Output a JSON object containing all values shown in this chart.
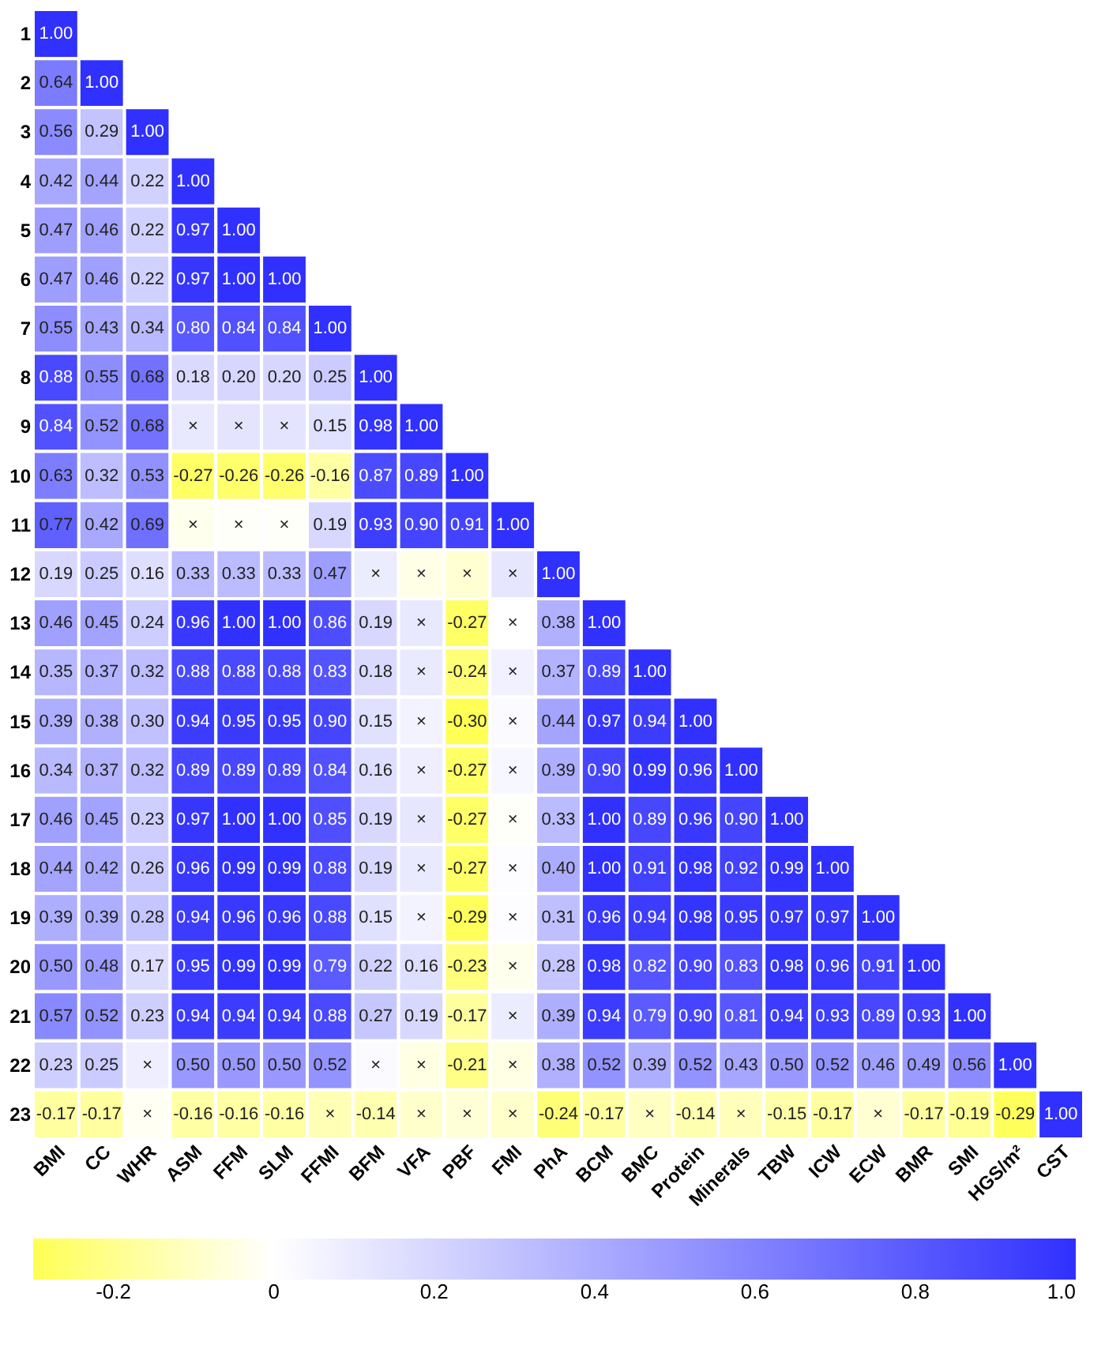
{
  "chart_data": {
    "type": "heatmap",
    "categories": [
      "BMI",
      "CC",
      "WHR",
      "ASM",
      "FFM",
      "SLM",
      "FFMI",
      "BFM",
      "VFA",
      "PBF",
      "FMI",
      "PhA",
      "BCM",
      "BMC",
      "Protein",
      "Minerals",
      "TBW",
      "ICW",
      "ECW",
      "BMR",
      "SMI",
      "HGS/m²",
      "CST"
    ],
    "y_categories": [
      "1",
      "2",
      "3",
      "4",
      "5",
      "6",
      "7",
      "8",
      "9",
      "10",
      "11",
      "12",
      "13",
      "14",
      "15",
      "16",
      "17",
      "18",
      "19",
      "20",
      "21",
      "22",
      "23"
    ],
    "cells": [
      [
        1.0,
        null,
        null,
        null,
        null,
        null,
        null,
        null,
        null,
        null,
        null,
        null,
        null,
        null,
        null,
        null,
        null,
        null,
        null,
        null,
        null,
        null,
        null
      ],
      [
        0.64,
        1.0,
        null,
        null,
        null,
        null,
        null,
        null,
        null,
        null,
        null,
        null,
        null,
        null,
        null,
        null,
        null,
        null,
        null,
        null,
        null,
        null,
        null
      ],
      [
        0.56,
        0.29,
        1.0,
        null,
        null,
        null,
        null,
        null,
        null,
        null,
        null,
        null,
        null,
        null,
        null,
        null,
        null,
        null,
        null,
        null,
        null,
        null,
        null
      ],
      [
        0.42,
        0.44,
        0.22,
        1.0,
        null,
        null,
        null,
        null,
        null,
        null,
        null,
        null,
        null,
        null,
        null,
        null,
        null,
        null,
        null,
        null,
        null,
        null,
        null
      ],
      [
        0.47,
        0.46,
        0.22,
        0.97,
        1.0,
        null,
        null,
        null,
        null,
        null,
        null,
        null,
        null,
        null,
        null,
        null,
        null,
        null,
        null,
        null,
        null,
        null,
        null
      ],
      [
        0.47,
        0.46,
        0.22,
        0.97,
        1.0,
        1.0,
        null,
        null,
        null,
        null,
        null,
        null,
        null,
        null,
        null,
        null,
        null,
        null,
        null,
        null,
        null,
        null,
        null
      ],
      [
        0.55,
        0.43,
        0.34,
        0.8,
        0.84,
        0.84,
        1.0,
        null,
        null,
        null,
        null,
        null,
        null,
        null,
        null,
        null,
        null,
        null,
        null,
        null,
        null,
        null,
        null
      ],
      [
        0.88,
        0.55,
        0.68,
        0.18,
        0.2,
        0.2,
        0.25,
        1.0,
        null,
        null,
        null,
        null,
        null,
        null,
        null,
        null,
        null,
        null,
        null,
        null,
        null,
        null,
        null
      ],
      [
        0.84,
        0.52,
        0.68,
        0.11,
        0.13,
        0.13,
        0.15,
        0.98,
        1.0,
        null,
        null,
        null,
        null,
        null,
        null,
        null,
        null,
        null,
        null,
        null,
        null,
        null,
        null
      ],
      [
        0.63,
        0.32,
        0.53,
        -0.27,
        -0.26,
        -0.26,
        -0.16,
        0.87,
        0.89,
        1.0,
        null,
        null,
        null,
        null,
        null,
        null,
        null,
        null,
        null,
        null,
        null,
        null,
        null
      ],
      [
        0.77,
        0.42,
        0.69,
        -0.03,
        -0.01,
        -0.01,
        0.19,
        0.93,
        0.9,
        0.91,
        1.0,
        null,
        null,
        null,
        null,
        null,
        null,
        null,
        null,
        null,
        null,
        null,
        null
      ],
      [
        0.19,
        0.25,
        0.16,
        0.33,
        0.33,
        0.33,
        0.47,
        0.09,
        -0.04,
        -0.08,
        0.12,
        1.0,
        null,
        null,
        null,
        null,
        null,
        null,
        null,
        null,
        null,
        null,
        null
      ],
      [
        0.46,
        0.45,
        0.24,
        0.96,
        1.0,
        1.0,
        0.86,
        0.19,
        0.11,
        -0.27,
        0.0,
        0.38,
        1.0,
        null,
        null,
        null,
        null,
        null,
        null,
        null,
        null,
        null,
        null
      ],
      [
        0.35,
        0.37,
        0.32,
        0.88,
        0.88,
        0.88,
        0.83,
        0.18,
        0.1,
        -0.24,
        0.07,
        0.37,
        0.89,
        1.0,
        null,
        null,
        null,
        null,
        null,
        null,
        null,
        null,
        null
      ],
      [
        0.39,
        0.38,
        0.3,
        0.94,
        0.95,
        0.95,
        0.9,
        0.15,
        0.06,
        -0.3,
        0.02,
        0.44,
        0.97,
        0.94,
        1.0,
        null,
        null,
        null,
        null,
        null,
        null,
        null,
        null
      ],
      [
        0.34,
        0.37,
        0.32,
        0.89,
        0.89,
        0.89,
        0.84,
        0.16,
        0.08,
        -0.27,
        0.04,
        0.39,
        0.9,
        0.99,
        0.96,
        1.0,
        null,
        null,
        null,
        null,
        null,
        null,
        null
      ],
      [
        0.46,
        0.45,
        0.23,
        0.97,
        1.0,
        1.0,
        0.85,
        0.19,
        0.12,
        -0.27,
        -0.01,
        0.33,
        1.0,
        0.89,
        0.96,
        0.9,
        1.0,
        null,
        null,
        null,
        null,
        null,
        null
      ],
      [
        0.44,
        0.42,
        0.26,
        0.96,
        0.99,
        0.99,
        0.88,
        0.19,
        0.1,
        -0.27,
        0.01,
        0.4,
        1.0,
        0.91,
        0.98,
        0.92,
        0.99,
        1.0,
        null,
        null,
        null,
        null,
        null
      ],
      [
        0.39,
        0.39,
        0.28,
        0.94,
        0.96,
        0.96,
        0.88,
        0.15,
        0.06,
        -0.29,
        0.01,
        0.31,
        0.96,
        0.94,
        0.98,
        0.95,
        0.97,
        0.97,
        1.0,
        null,
        null,
        null,
        null
      ],
      [
        0.5,
        0.48,
        0.17,
        0.95,
        0.99,
        0.99,
        0.79,
        0.22,
        0.16,
        -0.23,
        -0.03,
        0.28,
        0.98,
        0.82,
        0.9,
        0.83,
        0.98,
        0.96,
        0.91,
        1.0,
        null,
        null,
        null
      ],
      [
        0.57,
        0.52,
        0.23,
        0.94,
        0.94,
        0.94,
        0.88,
        0.27,
        0.19,
        -0.17,
        0.09,
        0.39,
        0.94,
        0.79,
        0.9,
        0.81,
        0.94,
        0.93,
        0.89,
        0.93,
        1.0,
        null,
        null
      ],
      [
        0.23,
        0.25,
        0.08,
        0.5,
        0.5,
        0.5,
        0.52,
        0.02,
        -0.05,
        -0.21,
        -0.05,
        0.38,
        0.52,
        0.39,
        0.52,
        0.43,
        0.5,
        0.52,
        0.46,
        0.49,
        0.56,
        1.0,
        null
      ],
      [
        -0.17,
        -0.17,
        -0.02,
        -0.16,
        -0.16,
        -0.16,
        -0.13,
        -0.14,
        -0.09,
        -0.07,
        -0.09,
        -0.24,
        -0.17,
        -0.11,
        -0.14,
        -0.12,
        -0.15,
        -0.17,
        -0.08,
        -0.17,
        -0.19,
        -0.29,
        1.0
      ]
    ],
    "cell_labels": [
      [
        "1.00",
        null,
        null,
        null,
        null,
        null,
        null,
        null,
        null,
        null,
        null,
        null,
        null,
        null,
        null,
        null,
        null,
        null,
        null,
        null,
        null,
        null,
        null
      ],
      [
        "0.64",
        "1.00",
        null,
        null,
        null,
        null,
        null,
        null,
        null,
        null,
        null,
        null,
        null,
        null,
        null,
        null,
        null,
        null,
        null,
        null,
        null,
        null,
        null
      ],
      [
        "0.56",
        "0.29",
        "1.00",
        null,
        null,
        null,
        null,
        null,
        null,
        null,
        null,
        null,
        null,
        null,
        null,
        null,
        null,
        null,
        null,
        null,
        null,
        null,
        null
      ],
      [
        "0.42",
        "0.44",
        "0.22",
        "1.00",
        null,
        null,
        null,
        null,
        null,
        null,
        null,
        null,
        null,
        null,
        null,
        null,
        null,
        null,
        null,
        null,
        null,
        null,
        null
      ],
      [
        "0.47",
        "0.46",
        "0.22",
        "0.97",
        "1.00",
        null,
        null,
        null,
        null,
        null,
        null,
        null,
        null,
        null,
        null,
        null,
        null,
        null,
        null,
        null,
        null,
        null,
        null
      ],
      [
        "0.47",
        "0.46",
        "0.22",
        "0.97",
        "1.00",
        "1.00",
        null,
        null,
        null,
        null,
        null,
        null,
        null,
        null,
        null,
        null,
        null,
        null,
        null,
        null,
        null,
        null,
        null
      ],
      [
        "0.55",
        "0.43",
        "0.34",
        "0.80",
        "0.84",
        "0.84",
        "1.00",
        null,
        null,
        null,
        null,
        null,
        null,
        null,
        null,
        null,
        null,
        null,
        null,
        null,
        null,
        null,
        null
      ],
      [
        "0.88",
        "0.55",
        "0.68",
        "0.18",
        "0.20",
        "0.20",
        "0.25",
        "1.00",
        null,
        null,
        null,
        null,
        null,
        null,
        null,
        null,
        null,
        null,
        null,
        null,
        null,
        null,
        null
      ],
      [
        "0.84",
        "0.52",
        "0.68",
        "×",
        "×",
        "×",
        "0.15",
        "0.98",
        "1.00",
        null,
        null,
        null,
        null,
        null,
        null,
        null,
        null,
        null,
        null,
        null,
        null,
        null,
        null
      ],
      [
        "0.63",
        "0.32",
        "0.53",
        "-0.27",
        "-0.26",
        "-0.26",
        "-0.16",
        "0.87",
        "0.89",
        "1.00",
        null,
        null,
        null,
        null,
        null,
        null,
        null,
        null,
        null,
        null,
        null,
        null,
        null
      ],
      [
        "0.77",
        "0.42",
        "0.69",
        "×",
        "×",
        "×",
        "0.19",
        "0.93",
        "0.90",
        "0.91",
        "1.00",
        null,
        null,
        null,
        null,
        null,
        null,
        null,
        null,
        null,
        null,
        null,
        null
      ],
      [
        "0.19",
        "0.25",
        "0.16",
        "0.33",
        "0.33",
        "0.33",
        "0.47",
        "×",
        "×",
        "×",
        "×",
        "1.00",
        null,
        null,
        null,
        null,
        null,
        null,
        null,
        null,
        null,
        null,
        null
      ],
      [
        "0.46",
        "0.45",
        "0.24",
        "0.96",
        "1.00",
        "1.00",
        "0.86",
        "0.19",
        "×",
        "-0.27",
        "×",
        "0.38",
        "1.00",
        null,
        null,
        null,
        null,
        null,
        null,
        null,
        null,
        null,
        null
      ],
      [
        "0.35",
        "0.37",
        "0.32",
        "0.88",
        "0.88",
        "0.88",
        "0.83",
        "0.18",
        "×",
        "-0.24",
        "×",
        "0.37",
        "0.89",
        "1.00",
        null,
        null,
        null,
        null,
        null,
        null,
        null,
        null,
        null
      ],
      [
        "0.39",
        "0.38",
        "0.30",
        "0.94",
        "0.95",
        "0.95",
        "0.90",
        "0.15",
        "×",
        "-0.30",
        "×",
        "0.44",
        "0.97",
        "0.94",
        "1.00",
        null,
        null,
        null,
        null,
        null,
        null,
        null,
        null
      ],
      [
        "0.34",
        "0.37",
        "0.32",
        "0.89",
        "0.89",
        "0.89",
        "0.84",
        "0.16",
        "×",
        "-0.27",
        "×",
        "0.39",
        "0.90",
        "0.99",
        "0.96",
        "1.00",
        null,
        null,
        null,
        null,
        null,
        null,
        null
      ],
      [
        "0.46",
        "0.45",
        "0.23",
        "0.97",
        "1.00",
        "1.00",
        "0.85",
        "0.19",
        "×",
        "-0.27",
        "×",
        "0.33",
        "1.00",
        "0.89",
        "0.96",
        "0.90",
        "1.00",
        null,
        null,
        null,
        null,
        null,
        null
      ],
      [
        "0.44",
        "0.42",
        "0.26",
        "0.96",
        "0.99",
        "0.99",
        "0.88",
        "0.19",
        "×",
        "-0.27",
        "×",
        "0.40",
        "1.00",
        "0.91",
        "0.98",
        "0.92",
        "0.99",
        "1.00",
        null,
        null,
        null,
        null,
        null
      ],
      [
        "0.39",
        "0.39",
        "0.28",
        "0.94",
        "0.96",
        "0.96",
        "0.88",
        "0.15",
        "×",
        "-0.29",
        "×",
        "0.31",
        "0.96",
        "0.94",
        "0.98",
        "0.95",
        "0.97",
        "0.97",
        "1.00",
        null,
        null,
        null,
        null
      ],
      [
        "0.50",
        "0.48",
        "0.17",
        "0.95",
        "0.99",
        "0.99",
        "0.79",
        "0.22",
        "0.16",
        "-0.23",
        "×",
        "0.28",
        "0.98",
        "0.82",
        "0.90",
        "0.83",
        "0.98",
        "0.96",
        "0.91",
        "1.00",
        null,
        null,
        null
      ],
      [
        "0.57",
        "0.52",
        "0.23",
        "0.94",
        "0.94",
        "0.94",
        "0.88",
        "0.27",
        "0.19",
        "-0.17",
        "×",
        "0.39",
        "0.94",
        "0.79",
        "0.90",
        "0.81",
        "0.94",
        "0.93",
        "0.89",
        "0.93",
        "1.00",
        null,
        null
      ],
      [
        "0.23",
        "0.25",
        "×",
        "0.50",
        "0.50",
        "0.50",
        "0.52",
        "×",
        "×",
        "-0.21",
        "×",
        "0.38",
        "0.52",
        "0.39",
        "0.52",
        "0.43",
        "0.50",
        "0.52",
        "0.46",
        "0.49",
        "0.56",
        "1.00",
        null
      ],
      [
        "-0.17",
        "-0.17",
        "×",
        "-0.16",
        "-0.16",
        "-0.16",
        "×",
        "-0.14",
        "×",
        "×",
        "×",
        "-0.24",
        "-0.17",
        "×",
        "-0.14",
        "×",
        "-0.15",
        "-0.17",
        "×",
        "-0.17",
        "-0.19",
        "-0.29",
        "1.00"
      ]
    ],
    "clim": [
      -0.3,
      1.0
    ],
    "cticks": [
      -0.2,
      0,
      0.2,
      0.4,
      0.6,
      0.8,
      {
        "value": 1,
        "label": "1.0"
      }
    ]
  }
}
